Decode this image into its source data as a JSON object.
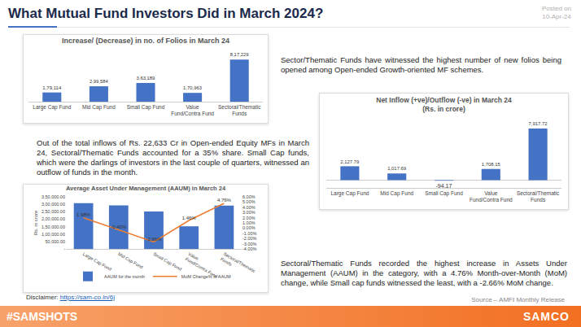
{
  "header": {
    "title": "What Mutual Fund Investors Did in March 2024?",
    "posted_label": "Posted on",
    "posted_date": "10-Apr-24"
  },
  "notes": [
    "Sector/Thematic Funds have witnessed the highest number of new folios being opened among Open-ended Growth-oriented MF schemes.",
    "Out of the total inflows of Rs. 22,633 Cr in Open-ended Equity MFs in March 24, Sectoral/Thematic Funds accounted for a 35% share. Small Cap funds, which were the darlings of investors in the last couple of quarters, witnessed an outflow of funds in the month.",
    "Sectoral/Thematic Funds recorded the highest increase in Assets Under Management (AAUM) in the category, with a 4.76% Month-over-Month (MoM) change, while Small cap funds witnessed the least, with a -2.66% MoM change."
  ],
  "disclaimer": {
    "label": "Disclaimer:",
    "link": "https://sam-co.in/6j"
  },
  "source": "Source – AMFI Monthly Release",
  "footer": {
    "hashtag": "#SAMSHOTS",
    "brand": "SAMCO"
  },
  "chart_data": [
    {
      "type": "bar",
      "title": "Increase/ (Decrease) in no. of Folios in March 24",
      "categories": [
        "Large Cap Fund",
        "Mid Cap Fund",
        "Small Cap Fund",
        "Value Fund/Contra Fund",
        "Sectoral/Thematic Funds"
      ],
      "values": [
        179114,
        299584,
        363189,
        170963,
        817229
      ],
      "value_labels": [
        "1,79,114",
        "2,99,584",
        "3,63,189",
        "1,70,963",
        "8,17,229"
      ],
      "color": "#4472c4",
      "ylim": [
        0,
        980000
      ],
      "grid": false,
      "data_labels": true,
      "tick_labels": "x"
    },
    {
      "type": "bar",
      "title": "Net Inflow (+ve)/Outflow (-ve) in March 24",
      "subtitle": "(Rs. in crore)",
      "categories": [
        "Large Cap Fund",
        "Mid Cap Fund",
        "Small Cap Fund",
        "Value Fund/Contra Fund",
        "Sectoral/Thematic Funds"
      ],
      "values": [
        2127.79,
        1017.69,
        -94.17,
        1708.15,
        7917.72
      ],
      "value_labels": [
        "2,127.79",
        "1,017.69",
        "-94.17",
        "1,708.15",
        "7,917.72"
      ],
      "color": "#4472c4",
      "ylim": [
        -1200,
        9300
      ],
      "grid": false,
      "data_labels": true,
      "tick_labels": "x"
    },
    {
      "type": "bar",
      "title": "Average Asset Under Management (AAUM) in March 24",
      "categories": [
        "Large Cap Fund",
        "Mid Cap Fund",
        "Small Cap Fund",
        "Value Fund/Contra Fund",
        "Sectoral/Thematic Funds"
      ],
      "ylabel": "Rs. in crore",
      "series": [
        {
          "name": "AAUM for the month",
          "type": "bar",
          "color": "#4472c4",
          "values": [
            307000,
            293000,
            252000,
            152000,
            291000
          ]
        },
        {
          "name": "MoM Change% in AAUM",
          "type": "line",
          "axis": "y2",
          "color": "#ed7d31",
          "data_labels": true,
          "values": [
            1.98,
            -0.4,
            -2.66,
            1.46,
            4.76
          ],
          "value_labels": [
            "1.98%",
            "-0.40%",
            "-2.66%",
            "1.46%",
            "4.76%"
          ]
        }
      ],
      "ylim": [
        0,
        350000
      ],
      "yticks": [
        {
          "value": 0,
          "label": "-"
        },
        {
          "value": 50000,
          "label": "50,000.00"
        },
        {
          "value": 100000,
          "label": "1,00,000.00"
        },
        {
          "value": 150000,
          "label": "1,50,000.00"
        },
        {
          "value": 200000,
          "label": "2,00,000.00"
        },
        {
          "value": 250000,
          "label": "2,50,000.00"
        },
        {
          "value": 300000,
          "label": "3,00,000.00"
        },
        {
          "value": 350000,
          "label": "3,50,000.00"
        }
      ],
      "y2lim": [
        -4,
        6
      ],
      "y2ticks": [
        {
          "value": -4,
          "label": "-4.00%"
        },
        {
          "value": -3,
          "label": "-3.00%"
        },
        {
          "value": -2,
          "label": "-2.00%"
        },
        {
          "value": -1,
          "label": "-1.00%"
        },
        {
          "value": 0,
          "label": "0.00%"
        },
        {
          "value": 1,
          "label": "1.00%"
        },
        {
          "value": 2,
          "label": "2.00%"
        },
        {
          "value": 3,
          "label": "3.00%"
        },
        {
          "value": 4,
          "label": "4.00%"
        },
        {
          "value": 5,
          "label": "5.00%"
        },
        {
          "value": 6,
          "label": "6.00%"
        }
      ],
      "grid": false,
      "legend": "bottom"
    }
  ]
}
